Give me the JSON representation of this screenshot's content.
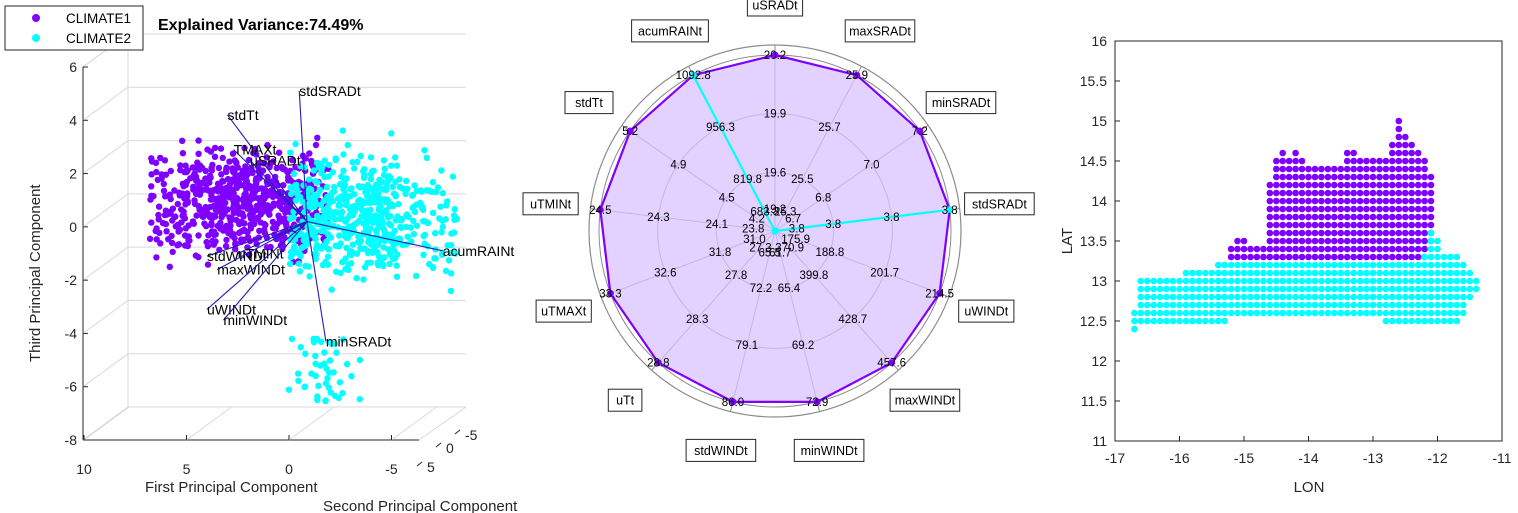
{
  "colors": {
    "climate1": "#7f00ff",
    "climate2": "#00ffff",
    "climate1_fill": "#d9c2ff",
    "climate2_fill": "#9fb6f0",
    "axis": "#262626",
    "grid": "#d9d9d9",
    "biplot_vector": "#1f1fb4"
  },
  "chart_data": [
    {
      "type": "scatter",
      "subtype": "pca-biplot-3d",
      "title": "Explained Variance:74.49%",
      "xlabel": "First Principal Component",
      "ylabel": "Second Principal Component",
      "zlabel": "Third Principal Component",
      "xticks": [
        "10",
        "5",
        "0",
        "-5"
      ],
      "yticks": [
        "5",
        "0",
        "-5"
      ],
      "zticks": [
        "6",
        "4",
        "2",
        "0",
        "-2",
        "-4",
        "-6",
        "-8"
      ],
      "zlim": [
        -8,
        6
      ],
      "grid": true,
      "legend_position": "top-left",
      "legend": [
        "CLIMATE1",
        "CLIMATE2"
      ],
      "loadings": [
        {
          "name": "stdSRADt",
          "pc1": -0.5,
          "pc3": 5.1
        },
        {
          "name": "stdTt",
          "pc1": 3.0,
          "pc3": 4.2
        },
        {
          "name": "TMAXt",
          "pc1": 2.7,
          "pc3": 2.9
        },
        {
          "name": "uSRADt",
          "pc1": 1.9,
          "pc3": 2.5
        },
        {
          "name": "acumRAINt",
          "pc1": -7.5,
          "pc3": -0.9
        },
        {
          "name": "stdWINDt",
          "pc1": 4.0,
          "pc3": -1.1
        },
        {
          "name": "uTMINt",
          "pc1": 2.5,
          "pc3": -1.0
        },
        {
          "name": "maxWINDt",
          "pc1": 3.5,
          "pc3": -1.6
        },
        {
          "name": "uWINDt",
          "pc1": 4.0,
          "pc3": -3.1
        },
        {
          "name": "minWINDt",
          "pc1": 3.2,
          "pc3": -3.5
        },
        {
          "name": "minSRADt",
          "pc1": -1.8,
          "pc3": -4.3
        }
      ]
    },
    {
      "type": "radar",
      "series": [
        {
          "name": "CLIMATE1",
          "values": [
            20.2,
            25.9,
            7.2,
            3.8,
            214.5,
            457.6,
            72.9,
            86.0,
            28.8,
            33.3,
            24.5,
            5.2,
            1092.8
          ]
        },
        {
          "name": "CLIMATE2",
          "values": [
            19.2,
            25.3,
            6.7,
            3.8,
            175.9,
            370.9,
            61.7,
            65.5,
            27.3,
            31.0,
            23.8,
            4.2,
            1092.8
          ]
        }
      ],
      "axes": [
        {
          "label": "uSRADt",
          "rings": [
            "19.2",
            "19.6",
            "19.9",
            "20.2"
          ]
        },
        {
          "label": "maxSRADt",
          "rings": [
            "25.3",
            "25.5",
            "25.7",
            "25.9"
          ]
        },
        {
          "label": "minSRADt",
          "rings": [
            "6.7",
            "6.8",
            "7.0",
            "7.2"
          ]
        },
        {
          "label": "stdSRADt",
          "rings": [
            "3.8",
            "3.8",
            "3.8",
            "3.8"
          ]
        },
        {
          "label": "uWINDt",
          "rings": [
            "175.9",
            "188.8",
            "201.7",
            "214.5"
          ]
        },
        {
          "label": "maxWINDt",
          "rings": [
            "370.9",
            "399.8",
            "428.7",
            "457.6"
          ]
        },
        {
          "label": "minWINDt",
          "rings": [
            "61.7",
            "65.4",
            "69.2",
            "72.9"
          ]
        },
        {
          "label": "stdWINDt",
          "rings": [
            "65.5",
            "72.2",
            "79.1",
            "86.0"
          ]
        },
        {
          "label": "uTt",
          "rings": [
            "27.3",
            "27.8",
            "28.3",
            "28.8"
          ]
        },
        {
          "label": "uTMAXt",
          "rings": [
            "31.0",
            "31.8",
            "32.6",
            "33.3"
          ]
        },
        {
          "label": "uTMINt",
          "rings": [
            "23.8",
            "24.1",
            "24.3",
            "24.5"
          ]
        },
        {
          "label": "stdTt",
          "rings": [
            "4.2",
            "4.5",
            "4.9",
            "5.2"
          ]
        },
        {
          "label": "acumRAINt",
          "rings": [
            "683.3",
            "819.8",
            "956.3",
            "1092.8"
          ]
        }
      ]
    },
    {
      "type": "scatter",
      "subtype": "map-grid",
      "xlabel": "LON",
      "ylabel": "LAT",
      "xlim": [
        -17,
        -11
      ],
      "ylim": [
        11,
        16
      ],
      "xticks": [
        "-17",
        "-16",
        "-15",
        "-14",
        "-13",
        "-12",
        "-11"
      ],
      "yticks": [
        "11",
        "11.5",
        "12",
        "12.5",
        "13",
        "13.5",
        "14",
        "14.5",
        "15",
        "15.5",
        "16"
      ],
      "grid": false,
      "grid_spacing_deg": [
        0.1,
        0.1
      ],
      "series": [
        {
          "name": "CLIMATE1",
          "lon_ranges": [
            {
              "lon": -15.2,
              "lat": [
                13.3,
                13.4
              ]
            },
            {
              "lon": -15.1,
              "lat": [
                13.3,
                13.5
              ]
            },
            {
              "lon": -15.0,
              "lat": [
                13.3,
                13.5
              ]
            },
            {
              "lon": -14.9,
              "lat": [
                13.3,
                13.4
              ]
            },
            {
              "lon": -14.8,
              "lat": [
                13.3,
                13.4
              ]
            },
            {
              "lon": -14.7,
              "lat": [
                13.3,
                13.4
              ]
            },
            {
              "lon": -14.6,
              "lat": [
                13.3,
                14.2
              ]
            },
            {
              "lon": -14.5,
              "lat": [
                13.3,
                14.5
              ]
            },
            {
              "lon": -14.4,
              "lat": [
                13.3,
                14.6
              ]
            },
            {
              "lon": -14.3,
              "lat": [
                13.3,
                14.5
              ]
            },
            {
              "lon": -14.2,
              "lat": [
                13.3,
                14.6
              ]
            },
            {
              "lon": -14.1,
              "lat": [
                13.3,
                14.5
              ]
            },
            {
              "lon": -14.0,
              "lat": [
                13.3,
                14.4
              ]
            },
            {
              "lon": -13.9,
              "lat": [
                13.3,
                14.4
              ]
            },
            {
              "lon": -13.8,
              "lat": [
                13.3,
                14.4
              ]
            },
            {
              "lon": -13.7,
              "lat": [
                13.3,
                14.4
              ]
            },
            {
              "lon": -13.6,
              "lat": [
                13.3,
                14.4
              ]
            },
            {
              "lon": -13.5,
              "lat": [
                13.3,
                14.4
              ]
            },
            {
              "lon": -13.4,
              "lat": [
                13.3,
                14.6
              ]
            },
            {
              "lon": -13.3,
              "lat": [
                13.3,
                14.6
              ]
            },
            {
              "lon": -13.2,
              "lat": [
                13.3,
                14.5
              ]
            },
            {
              "lon": -13.1,
              "lat": [
                13.3,
                14.5
              ]
            },
            {
              "lon": -13.0,
              "lat": [
                13.3,
                14.5
              ]
            },
            {
              "lon": -12.9,
              "lat": [
                13.3,
                14.5
              ]
            },
            {
              "lon": -12.8,
              "lat": [
                13.3,
                14.5
              ]
            },
            {
              "lon": -12.7,
              "lat": [
                13.3,
                14.7
              ]
            },
            {
              "lon": -12.6,
              "lat": [
                13.3,
                15.0
              ]
            },
            {
              "lon": -12.5,
              "lat": [
                13.3,
                14.8
              ]
            },
            {
              "lon": -12.4,
              "lat": [
                13.3,
                14.7
              ]
            },
            {
              "lon": -12.3,
              "lat": [
                13.3,
                14.6
              ]
            },
            {
              "lon": -12.2,
              "lat": [
                13.3,
                14.5
              ]
            },
            {
              "lon": -12.1,
              "lat": [
                13.5,
                14.3
              ]
            }
          ]
        },
        {
          "name": "CLIMATE2",
          "lon_ranges": [
            {
              "lon": -16.7,
              "lat": [
                12.4,
                12.6
              ]
            },
            {
              "lon": -16.6,
              "lat": [
                12.5,
                13.0
              ]
            },
            {
              "lon": -16.5,
              "lat": [
                12.5,
                13.0
              ]
            },
            {
              "lon": -16.4,
              "lat": [
                12.5,
                13.0
              ]
            },
            {
              "lon": -16.3,
              "lat": [
                12.5,
                13.0
              ]
            },
            {
              "lon": -16.2,
              "lat": [
                12.5,
                13.0
              ]
            },
            {
              "lon": -16.1,
              "lat": [
                12.5,
                13.0
              ]
            },
            {
              "lon": -16.0,
              "lat": [
                12.5,
                13.0
              ]
            },
            {
              "lon": -15.9,
              "lat": [
                12.5,
                13.1
              ]
            },
            {
              "lon": -15.8,
              "lat": [
                12.5,
                13.1
              ]
            },
            {
              "lon": -15.7,
              "lat": [
                12.5,
                13.1
              ]
            },
            {
              "lon": -15.6,
              "lat": [
                12.5,
                13.1
              ]
            },
            {
              "lon": -15.5,
              "lat": [
                12.5,
                13.1
              ]
            },
            {
              "lon": -15.4,
              "lat": [
                12.5,
                13.2
              ]
            },
            {
              "lon": -15.3,
              "lat": [
                12.5,
                13.2
              ]
            },
            {
              "lon": -15.2,
              "lat": [
                12.6,
                13.2
              ]
            },
            {
              "lon": -15.1,
              "lat": [
                12.6,
                13.2
              ]
            },
            {
              "lon": -15.0,
              "lat": [
                12.6,
                13.2
              ]
            },
            {
              "lon": -14.9,
              "lat": [
                12.6,
                13.2
              ]
            },
            {
              "lon": -14.8,
              "lat": [
                12.6,
                13.2
              ]
            },
            {
              "lon": -14.7,
              "lat": [
                12.6,
                13.2
              ]
            },
            {
              "lon": -14.6,
              "lat": [
                12.6,
                13.2
              ]
            },
            {
              "lon": -14.5,
              "lat": [
                12.6,
                13.2
              ]
            },
            {
              "lon": -14.4,
              "lat": [
                12.6,
                13.2
              ]
            },
            {
              "lon": -14.3,
              "lat": [
                12.6,
                13.2
              ]
            },
            {
              "lon": -14.2,
              "lat": [
                12.6,
                13.2
              ]
            },
            {
              "lon": -14.1,
              "lat": [
                12.6,
                13.2
              ]
            },
            {
              "lon": -14.0,
              "lat": [
                12.6,
                13.2
              ]
            },
            {
              "lon": -13.9,
              "lat": [
                12.6,
                13.2
              ]
            },
            {
              "lon": -13.8,
              "lat": [
                12.6,
                13.2
              ]
            },
            {
              "lon": -13.7,
              "lat": [
                12.6,
                13.2
              ]
            },
            {
              "lon": -13.6,
              "lat": [
                12.6,
                13.2
              ]
            },
            {
              "lon": -13.5,
              "lat": [
                12.6,
                13.2
              ]
            },
            {
              "lon": -13.4,
              "lat": [
                12.6,
                13.2
              ]
            },
            {
              "lon": -13.3,
              "lat": [
                12.6,
                13.2
              ]
            },
            {
              "lon": -13.2,
              "lat": [
                12.6,
                13.2
              ]
            },
            {
              "lon": -13.1,
              "lat": [
                12.6,
                13.2
              ]
            },
            {
              "lon": -13.0,
              "lat": [
                12.6,
                13.2
              ]
            },
            {
              "lon": -12.9,
              "lat": [
                12.6,
                13.2
              ]
            },
            {
              "lon": -12.8,
              "lat": [
                12.5,
                13.2
              ]
            },
            {
              "lon": -12.7,
              "lat": [
                12.5,
                13.2
              ]
            },
            {
              "lon": -12.6,
              "lat": [
                12.5,
                13.2
              ]
            },
            {
              "lon": -12.5,
              "lat": [
                12.5,
                13.2
              ]
            },
            {
              "lon": -12.4,
              "lat": [
                12.5,
                13.2
              ]
            },
            {
              "lon": -12.3,
              "lat": [
                12.5,
                13.2
              ]
            },
            {
              "lon": -12.2,
              "lat": [
                12.5,
                13.3
              ]
            },
            {
              "lon": -12.1,
              "lat": [
                12.5,
                13.6
              ]
            },
            {
              "lon": -12.0,
              "lat": [
                12.5,
                13.5
              ]
            },
            {
              "lon": -11.9,
              "lat": [
                12.5,
                13.3
              ]
            },
            {
              "lon": -11.8,
              "lat": [
                12.5,
                13.3
              ]
            },
            {
              "lon": -11.7,
              "lat": [
                12.5,
                13.3
              ]
            },
            {
              "lon": -11.6,
              "lat": [
                12.6,
                13.2
              ]
            },
            {
              "lon": -11.5,
              "lat": [
                12.8,
                13.1
              ]
            },
            {
              "lon": -11.4,
              "lat": [
                12.9,
                13.0
              ]
            }
          ]
        }
      ]
    }
  ]
}
